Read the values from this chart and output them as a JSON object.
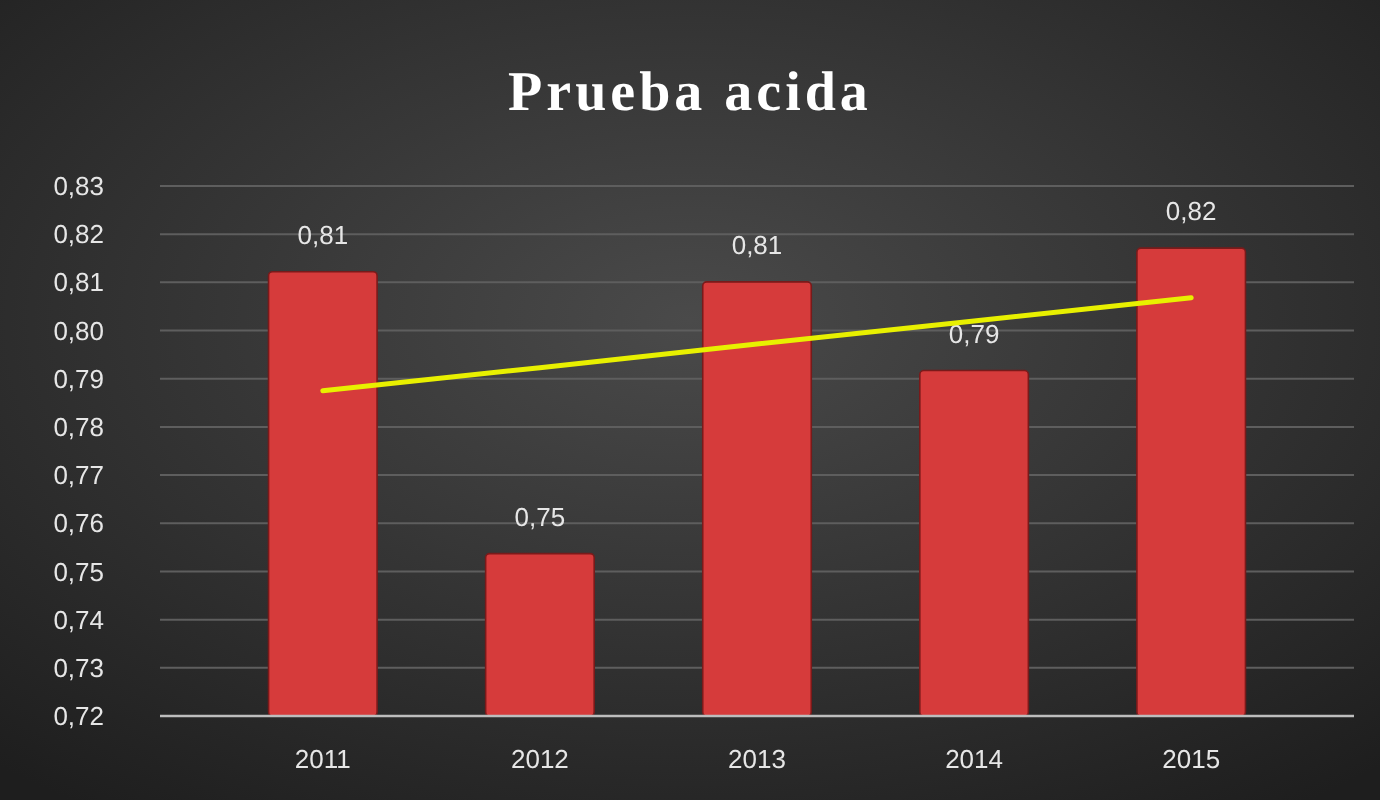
{
  "chart_data": {
    "type": "bar",
    "title": "Prueba acida",
    "categories": [
      "2011",
      "2012",
      "2013",
      "2014",
      "2015"
    ],
    "series": [
      {
        "color": "#d63b3b",
        "values": [
          0.8122,
          0.7537,
          0.8101,
          0.7917,
          0.8171
        ],
        "value_labels": [
          "0,81",
          "0,75",
          "0,81",
          "0,79",
          "0,82"
        ]
      },
      {
        "type": "line",
        "color": "#e8f000",
        "values": [
          0.7875,
          0.7923,
          0.7972,
          0.802,
          0.8068
        ],
        "marker": "none",
        "line_style": "solid"
      }
    ],
    "ylim": [
      0.72,
      0.83
    ],
    "yticks": [
      {
        "value": 0.72,
        "label": "0,72"
      },
      {
        "value": 0.73,
        "label": "0,73"
      },
      {
        "value": 0.74,
        "label": "0,74"
      },
      {
        "value": 0.75,
        "label": "0,75"
      },
      {
        "value": 0.76,
        "label": "0,76"
      },
      {
        "value": 0.77,
        "label": "0,77"
      },
      {
        "value": 0.78,
        "label": "0,78"
      },
      {
        "value": 0.79,
        "label": "0,79"
      },
      {
        "value": 0.8,
        "label": "0,80"
      },
      {
        "value": 0.81,
        "label": "0,81"
      },
      {
        "value": 0.82,
        "label": "0,82"
      },
      {
        "value": 0.83,
        "label": "0,83"
      }
    ],
    "grid": "y"
  }
}
